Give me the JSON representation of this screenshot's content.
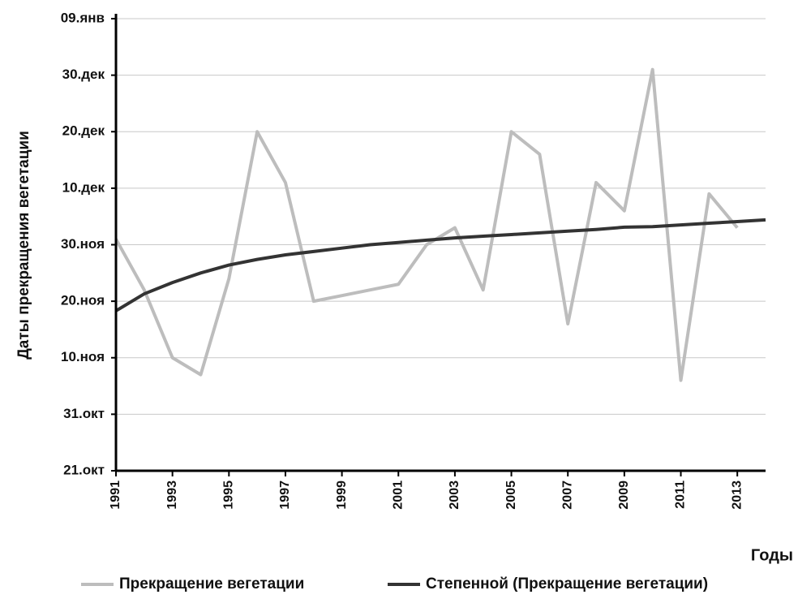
{
  "chart_data": {
    "type": "line",
    "x_label": "Годы",
    "y_label": "Даты прекращения вегетации",
    "x": [
      1991,
      1992,
      1993,
      1994,
      1995,
      1996,
      1997,
      1998,
      1999,
      2000,
      2001,
      2002,
      2003,
      2004,
      2005,
      2006,
      2007,
      2008,
      2009,
      2010,
      2011,
      2012,
      2013,
      2014
    ],
    "series": [
      {
        "name": "Прекращение вегетации",
        "color": "#bdbdbd",
        "values": [
          41,
          32,
          20,
          17,
          34,
          60,
          51,
          30,
          31,
          32,
          33,
          40,
          43,
          32,
          60,
          56,
          26,
          51,
          46,
          71,
          16,
          49,
          43,
          null
        ]
      },
      {
        "name": "Степенной (Прекращение вегетации)",
        "color": "#333333",
        "values": [
          28.3,
          31.3,
          33.3,
          35,
          36.4,
          37.4,
          38.2,
          38.8,
          39.4,
          40,
          40.4,
          40.8,
          41.2,
          41.5,
          41.8,
          42.1,
          42.4,
          42.7,
          43.1,
          43.2,
          43.5,
          43.8,
          44.1,
          44.4
        ]
      }
    ],
    "xlim": [
      1991,
      2014
    ],
    "xticks": [
      1991,
      1993,
      1995,
      1997,
      1999,
      2001,
      2003,
      2005,
      2007,
      2009,
      2011,
      2013
    ],
    "ylim": [
      0,
      80
    ],
    "yticks": [
      {
        "value": 0,
        "label": "21.окт"
      },
      {
        "value": 10,
        "label": "31.окт"
      },
      {
        "value": 20,
        "label": "10.ноя"
      },
      {
        "value": 30,
        "label": "20.ноя"
      },
      {
        "value": 40,
        "label": "30.ноя"
      },
      {
        "value": 50,
        "label": "10.дек"
      },
      {
        "value": 60,
        "label": "20.дек"
      },
      {
        "value": 70,
        "label": "30.дек"
      },
      {
        "value": 80,
        "label": "09.янв"
      }
    ],
    "grid": true,
    "legend": "bottom"
  }
}
